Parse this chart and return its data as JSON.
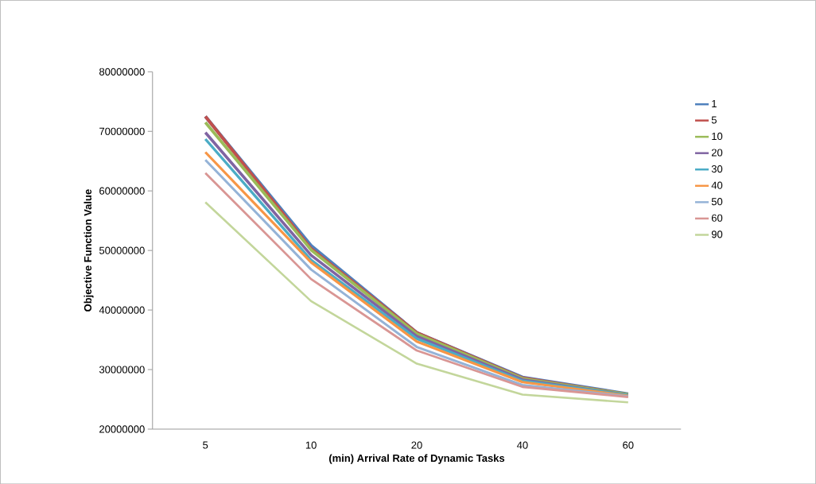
{
  "chart_data": {
    "type": "line",
    "xlabel": "(min) Arrival Rate of Dynamic Tasks",
    "ylabel": "Objective Function Value",
    "categories": [
      "5",
      "10",
      "20",
      "40",
      "60"
    ],
    "ylim": [
      20000000,
      80000000
    ],
    "yticks": [
      20000000,
      30000000,
      40000000,
      50000000,
      60000000,
      70000000,
      80000000
    ],
    "legend": "right",
    "grid": false,
    "marker": "none",
    "line_style": "solid",
    "series": [
      {
        "name": "1",
        "color": "#4f81bd",
        "values": [
          72500000,
          50800000,
          36200000,
          28700000,
          25900000
        ]
      },
      {
        "name": "5",
        "color": "#c0504d",
        "values": [
          72500000,
          50300000,
          36200000,
          28600000,
          25800000
        ]
      },
      {
        "name": "10",
        "color": "#9bbb59",
        "values": [
          71500000,
          50100000,
          36000000,
          28500000,
          25800000
        ]
      },
      {
        "name": "20",
        "color": "#8064a2",
        "values": [
          69800000,
          49200000,
          35600000,
          28300000,
          25700000
        ]
      },
      {
        "name": "30",
        "color": "#4bacc6",
        "values": [
          68700000,
          48400000,
          35200000,
          28100000,
          25700000
        ]
      },
      {
        "name": "40",
        "color": "#f79646",
        "values": [
          66500000,
          48000000,
          34700000,
          27900000,
          25600000
        ]
      },
      {
        "name": "50",
        "color": "#95b3d7",
        "values": [
          65200000,
          46800000,
          33800000,
          27400000,
          25500000
        ]
      },
      {
        "name": "60",
        "color": "#d99694",
        "values": [
          63000000,
          45200000,
          33200000,
          27100000,
          25400000
        ]
      },
      {
        "name": "90",
        "color": "#c3d69b",
        "values": [
          58100000,
          41500000,
          31000000,
          25800000,
          24500000
        ]
      }
    ]
  }
}
